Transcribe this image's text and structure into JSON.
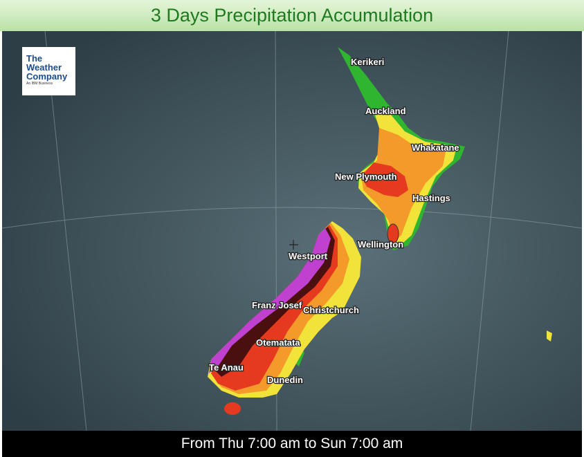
{
  "header": {
    "title": "3 Days Precipitation Accumulation"
  },
  "logo": [
    "The",
    "Weather",
    "Company",
    "An IBM Business"
  ],
  "cities": [
    "Kerikeri",
    "Auckland",
    "Whakatane",
    "New Plymouth",
    "Hastings",
    "Wellington",
    "Westport",
    "Franz Josef",
    "Christchurch",
    "Otematata",
    "Te Anau",
    "Dunedin"
  ],
  "footer": {
    "text": "From Thu 7:00 am to Sun 7:00 am"
  }
}
